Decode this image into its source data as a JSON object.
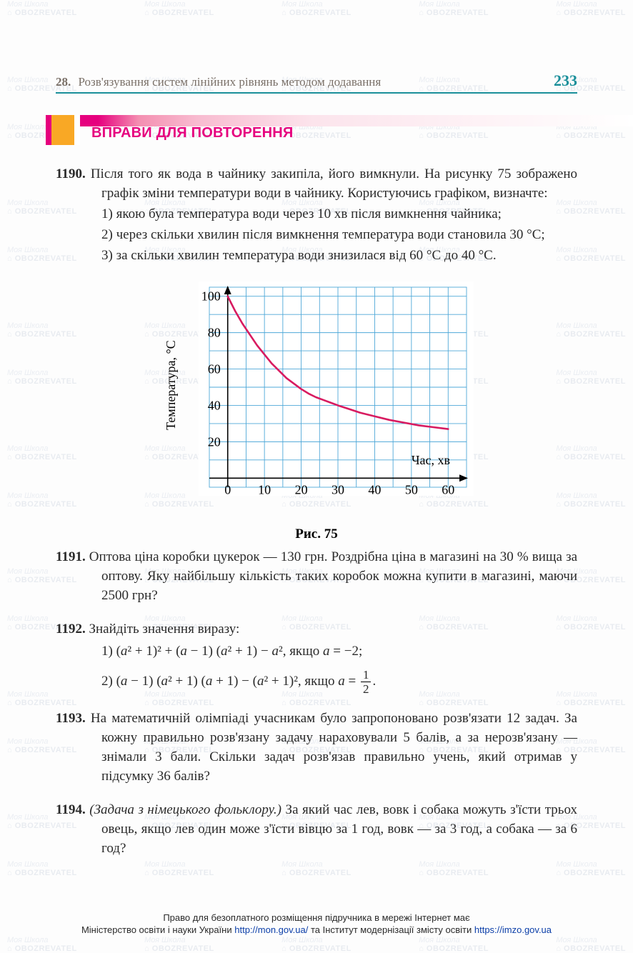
{
  "watermark": {
    "line1": "Моя Школа",
    "line2": "OBOZREVATEL"
  },
  "header": {
    "chapter_number": "28.",
    "chapter_title": "Розв'язування систем лінійних рівнянь методом додавання",
    "page_number": "233"
  },
  "section_title": "ВПРАВИ ДЛЯ ПОВТОРЕННЯ",
  "problems": {
    "p1190": {
      "num": "1190.",
      "intro": "Після того як вода в чайнику закипіла, його вимкнули. На рисунку 75 зображено графік зміни температури води в чайнику. Користуючись графіком, визначте:",
      "items": [
        {
          "n": "1)",
          "t": "якою була температура води через 10 хв після вимкнення чайника;"
        },
        {
          "n": "2)",
          "t": "через скільки хвилин після вимкнення температура води становила 30 °С;"
        },
        {
          "n": "3)",
          "t": "за скільки хвилин температура води знизилася від 60 °С до 40 °С."
        }
      ]
    },
    "p1191": {
      "num": "1191.",
      "text": "Оптова ціна коробки цукерок — 130 грн. Роздрібна ціна в магазині на 30 % вища за оптову. Яку найбільшу кількість таких коробок можна купити в магазині, маючи 2500 грн?"
    },
    "p1192": {
      "num": "1192.",
      "intro": "Знайдіть значення виразу:",
      "line1_a": "1) (",
      "line1_b": " + 1)² + (",
      "line1_c": " − 1) (",
      "line1_d": " + 1) − ",
      "line1_e": ", якщо ",
      "line1_f": " = −2;",
      "line2_a": "2) (",
      "line2_b": " − 1) (",
      "line2_c": " + 1) (",
      "line2_d": " + 1) − (",
      "line2_e": " + 1)², якщо ",
      "line2_f": " = ",
      "line2_g": "."
    },
    "p1193": {
      "num": "1193.",
      "text": "На математичній олімпіаді учасникам було запропоновано розв'язати 12 задач. За кожну правильно розв'язану задачу нараховували 5 балів, а за нерозв'язану — знімали 3 бали. Скільки задач розв'язав правильно учень, який отримав у підсумку 36 балів?"
    },
    "p1194": {
      "num": "1194.",
      "lead": "(Задача з німецького фольклору.)",
      "text": " За який час лев, вовк і собака можуть з'їсти трьох овець, якщо лев один може з'їсти вівцю за 1 год, вовк — за 3 год, а собака — за 6 год?"
    }
  },
  "chart": {
    "type": "line",
    "caption": "Рис. 75",
    "x_label": "Час, хв",
    "y_label": "Температура, °С",
    "xlim": [
      -5,
      65
    ],
    "ylim": [
      -5,
      105
    ],
    "x_ticks": [
      0,
      10,
      20,
      30,
      40,
      50,
      60
    ],
    "y_ticks": [
      20,
      40,
      60,
      80,
      100
    ],
    "grid_step_x": 5,
    "grid_step_y": 10,
    "grid_color": "#4fa8d8",
    "background_color": "#ffffff",
    "axis_color": "#000000",
    "curve_color": "#d81b60",
    "curve_width": 2.6,
    "tick_fontsize": 18,
    "label_fontsize": 18,
    "data_points": [
      [
        0,
        100
      ],
      [
        2,
        92
      ],
      [
        4,
        85
      ],
      [
        6,
        79
      ],
      [
        8,
        73
      ],
      [
        10,
        68
      ],
      [
        12,
        63
      ],
      [
        14,
        59
      ],
      [
        16,
        55
      ],
      [
        18,
        52
      ],
      [
        20,
        49
      ],
      [
        22,
        46.5
      ],
      [
        24,
        44.5
      ],
      [
        26,
        43
      ],
      [
        28,
        41.5
      ],
      [
        30,
        40
      ],
      [
        33,
        38
      ],
      [
        36,
        36
      ],
      [
        40,
        34
      ],
      [
        44,
        32
      ],
      [
        48,
        30.5
      ],
      [
        52,
        29
      ],
      [
        56,
        28
      ],
      [
        60,
        27
      ]
    ]
  },
  "footer": {
    "line1": "Право для безоплатного розміщення підручника в мережі Інтернет має",
    "line2_a": "Міністерство освіти і науки України ",
    "url1": "http://mon.gov.ua/",
    "line2_b": " та Інститут модернізації змісту освіти ",
    "url2": "https://imzo.gov.ua"
  }
}
